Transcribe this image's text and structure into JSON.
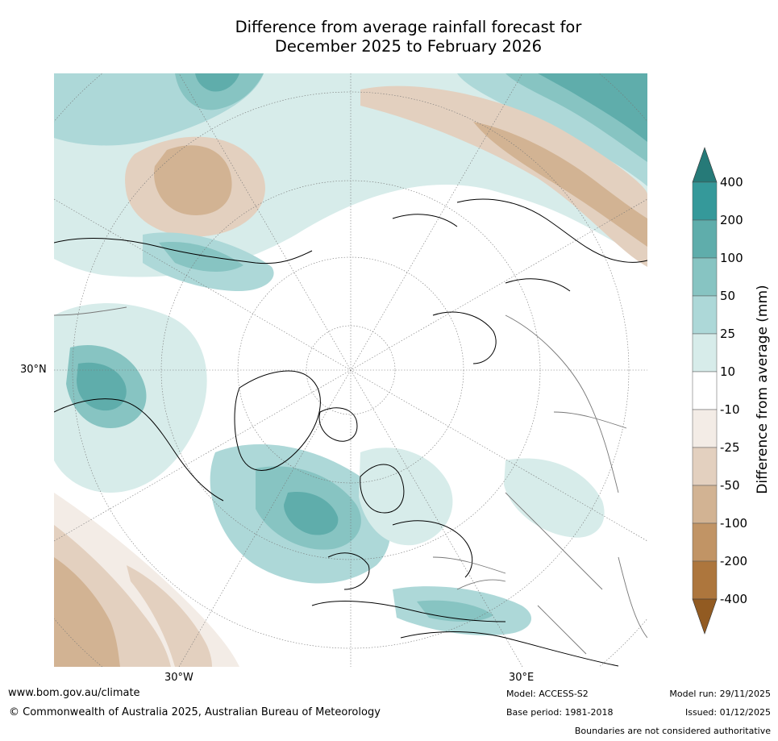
{
  "title_line1": "Difference from average rainfall forecast for",
  "title_line2": "December 2025 to February 2026",
  "map": {
    "projection": "north-polar-stereographic",
    "lat_label": "30°N",
    "lon_label_west": "30°W",
    "lon_label_east": "30°E"
  },
  "colorbar": {
    "title": "Difference from average (mm)",
    "ticks": [
      "400",
      "200",
      "100",
      "50",
      "25",
      "10",
      "-10",
      "-25",
      "-50",
      "-100",
      "-200",
      "-400"
    ],
    "bins": [
      {
        "range": ">400",
        "color": "#267a78"
      },
      {
        "range": "200 to 400",
        "color": "#35999a"
      },
      {
        "range": "100 to 200",
        "color": "#5fadab"
      },
      {
        "range": "50 to 100",
        "color": "#87c4c2"
      },
      {
        "range": "25 to 50",
        "color": "#add8d8"
      },
      {
        "range": "10 to 25",
        "color": "#d7ecea"
      },
      {
        "range": "-10 to 10",
        "color": "#ffffff"
      },
      {
        "range": "-25 to -10",
        "color": "#f3ece6"
      },
      {
        "range": "-50 to -25",
        "color": "#e3d0bf"
      },
      {
        "range": "-100 to -50",
        "color": "#d2b393"
      },
      {
        "range": "-200 to -100",
        "color": "#c19465"
      },
      {
        "range": "-400 to -200",
        "color": "#ad763d"
      },
      {
        "range": "<-400",
        "color": "#925b22"
      }
    ]
  },
  "footer": {
    "url": "www.bom.gov.au/climate",
    "copyright": "© Commonwealth of Australia 2025, Australian Bureau of Meteorology",
    "model": "Model: ACCESS-S2",
    "base_period": "Base period: 1981-2018",
    "model_run": "Model run: 29/11/2025",
    "issued": "Issued: 01/12/2025",
    "disclaimer": "Boundaries are not considered authoritative"
  }
}
